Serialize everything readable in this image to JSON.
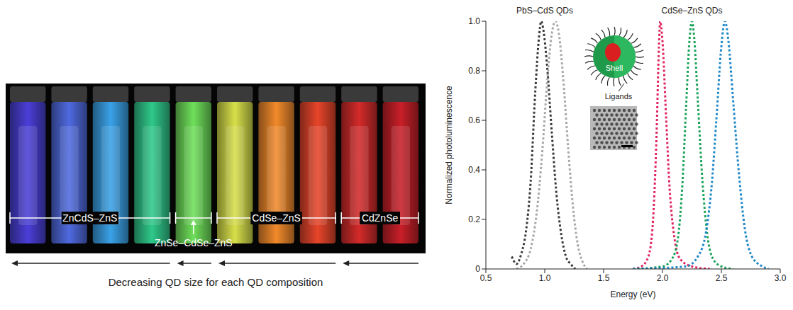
{
  "chart_data": {
    "type": "line",
    "x_label": "Energy (eV)",
    "y_label": "Normalized photoluminescence",
    "xlim": [
      0.5,
      3.0
    ],
    "xticks": [
      0.5,
      {
        "value": 1,
        "label": "1.0"
      },
      1.5,
      {
        "value": 2,
        "label": "2.0"
      },
      2.5,
      {
        "value": 3,
        "label": "3.0"
      }
    ],
    "ylim": [
      0,
      1
    ],
    "yticks": [
      0,
      0.2,
      0.4,
      0.6,
      0.8,
      {
        "value": 1,
        "label": "1.0"
      }
    ],
    "grid": false,
    "annotations": [
      {
        "text": "PbS–CdS QDs",
        "x": 1.0
      },
      {
        "text": "CdSe–ZnS QDs",
        "x": 2.25
      }
    ],
    "inset_labels": [
      "Shell",
      "Ligands"
    ],
    "series": [
      {
        "color": "#3a3a3a",
        "line_style": "dashed",
        "x": [
          0.72,
          0.76,
          0.8,
          0.84,
          0.88,
          0.92,
          0.95,
          0.97,
          0.99,
          1.02,
          1.06,
          1.1,
          1.14,
          1.18,
          1.22,
          1.26
        ],
        "values": [
          0.05,
          0.02,
          0.06,
          0.15,
          0.35,
          0.72,
          0.93,
          1.0,
          0.96,
          0.82,
          0.55,
          0.3,
          0.14,
          0.05,
          0.02,
          0.0
        ]
      },
      {
        "color": "#a8a8a8",
        "line_style": "dashed",
        "x": [
          0.76,
          0.82,
          0.88,
          0.93,
          0.98,
          1.02,
          1.06,
          1.09,
          1.12,
          1.16,
          1.2,
          1.24,
          1.28,
          1.32,
          1.36
        ],
        "values": [
          0.0,
          0.02,
          0.08,
          0.22,
          0.48,
          0.75,
          0.95,
          1.0,
          0.95,
          0.75,
          0.48,
          0.25,
          0.1,
          0.03,
          0.0
        ]
      },
      {
        "color": "#e0245e",
        "line_style": "dashed",
        "x": [
          1.75,
          1.82,
          1.88,
          1.92,
          1.95,
          1.97,
          1.98,
          2.0,
          2.03,
          2.06,
          2.1,
          2.15,
          2.25,
          2.4
        ],
        "values": [
          0.0,
          0.01,
          0.05,
          0.2,
          0.55,
          0.9,
          1.0,
          0.92,
          0.62,
          0.33,
          0.13,
          0.04,
          0.01,
          0.0
        ]
      },
      {
        "color": "#1aa35a",
        "line_style": "dashed",
        "x": [
          1.75,
          2.0,
          2.08,
          2.13,
          2.17,
          2.2,
          2.23,
          2.25,
          2.27,
          2.3,
          2.34,
          2.38,
          2.43,
          2.5,
          2.6
        ],
        "values": [
          0.0,
          0.01,
          0.04,
          0.12,
          0.35,
          0.65,
          0.93,
          1.0,
          0.93,
          0.68,
          0.35,
          0.14,
          0.04,
          0.01,
          0.0
        ]
      },
      {
        "color": "#1e88c8",
        "line_style": "dashed",
        "x": [
          1.75,
          2.2,
          2.3,
          2.37,
          2.42,
          2.46,
          2.5,
          2.53,
          2.56,
          2.6,
          2.65,
          2.7,
          2.76,
          2.85,
          2.9
        ],
        "values": [
          0.0,
          0.01,
          0.05,
          0.15,
          0.35,
          0.62,
          0.9,
          1.0,
          0.92,
          0.68,
          0.38,
          0.16,
          0.05,
          0.01,
          0.0
        ]
      }
    ]
  },
  "photo_panel": {
    "groups": [
      {
        "label": "ZnCdS–ZnS",
        "vial_colors": [
          "#4a3fd8",
          "#4f6ae0",
          "#3aa2e8",
          "#2fc98a"
        ]
      },
      {
        "label": "ZnSe–CdSe–ZnS",
        "vial_colors": [
          "#6fe05a"
        ]
      },
      {
        "label": "CdSe–ZnS",
        "vial_colors": [
          "#d8e04a",
          "#f28a2a",
          "#e8452a"
        ]
      },
      {
        "label": "CdZnSe",
        "vial_colors": [
          "#d42a2a",
          "#c91f28"
        ]
      }
    ],
    "arrow_label": "Decreasing QD size for each QD composition"
  }
}
